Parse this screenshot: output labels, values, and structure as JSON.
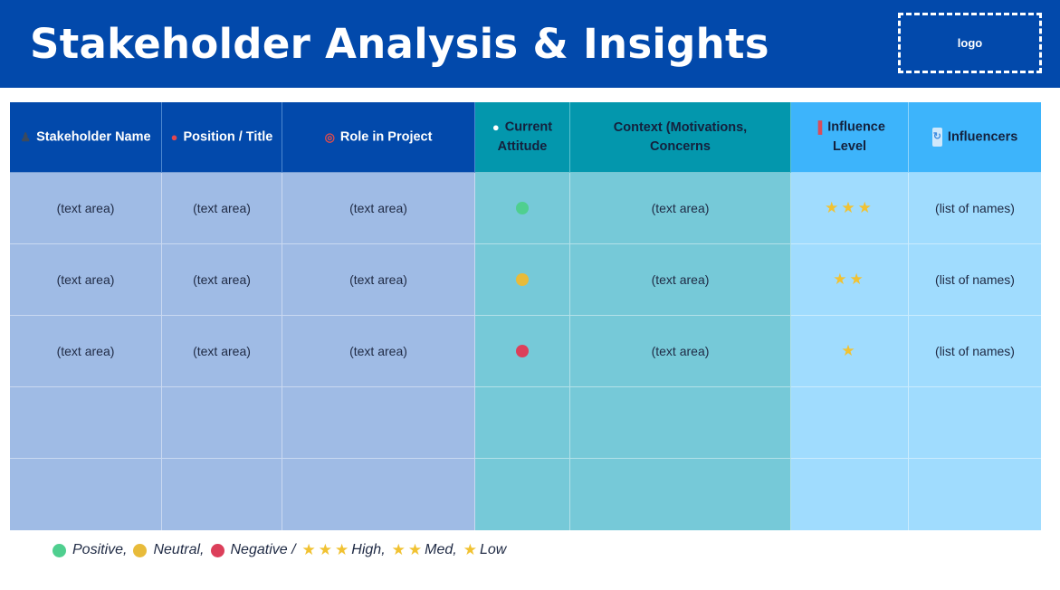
{
  "header": {
    "title": "Stakeholder Analysis & Insights",
    "logo_placeholder": "logo",
    "background": "#0249ab"
  },
  "table": {
    "columns": [
      {
        "icon": "person-silhouette-icon",
        "glyph": "♟",
        "label": "Stakeholder Name"
      },
      {
        "icon": "pushpin-icon",
        "glyph": "📌",
        "label": "Position / Title"
      },
      {
        "icon": "target-icon",
        "glyph": "◎",
        "label": "Role in Project"
      },
      {
        "icon": "speech-bubble-icon",
        "glyph": "●",
        "label": "Current Attitude"
      },
      {
        "icon": "",
        "glyph": "",
        "label": "Context (Motivations, Concerns"
      },
      {
        "icon": "bar-chart-icon",
        "glyph": "▐",
        "label": "Influence Level"
      },
      {
        "icon": "refresh-icon",
        "glyph": "↻",
        "label": "Influencers"
      }
    ],
    "rows": [
      {
        "name": "(text area)",
        "position": "(text area)",
        "role": "(text area)",
        "attitude": "positive",
        "context": "(text area)",
        "influence": "★★★",
        "influencers": "(list of names)"
      },
      {
        "name": "(text area)",
        "position": "(text area)",
        "role": "(text area)",
        "attitude": "neutral",
        "context": "(text area)",
        "influence": "★★",
        "influencers": "(list of names)"
      },
      {
        "name": "(text area)",
        "position": "(text area)",
        "role": "(text area)",
        "attitude": "negative",
        "context": "(text area)",
        "influence": "★",
        "influencers": "(list of names)"
      },
      {
        "name": "",
        "position": "",
        "role": "",
        "attitude": "",
        "context": "",
        "influence": "",
        "influencers": ""
      },
      {
        "name": "",
        "position": "",
        "role": "",
        "attitude": "",
        "context": "",
        "influence": "",
        "influencers": ""
      }
    ]
  },
  "attitude_colors": {
    "positive": "#4fcf8f",
    "neutral": "#e8bb3a",
    "negative": "#dc3f5a"
  },
  "legend": {
    "positive": "Positive,",
    "neutral": "Neutral,",
    "negative": "Negative /",
    "high": "High,",
    "med": "Med,",
    "low": "Low",
    "star_glyph": "★"
  }
}
